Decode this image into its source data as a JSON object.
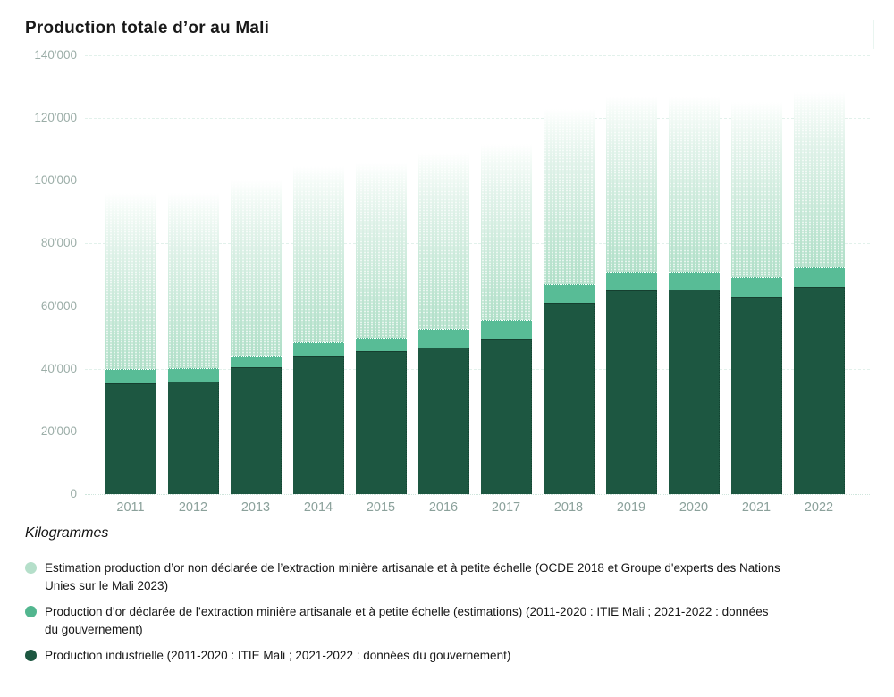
{
  "title": "Production totale d’or au Mali",
  "chart_data": {
    "type": "bar",
    "stacked": true,
    "title": "Production totale d’or au Mali",
    "ylabel": "Kilogrammes",
    "categories": [
      "2011",
      "2012",
      "2013",
      "2014",
      "2015",
      "2016",
      "2017",
      "2018",
      "2019",
      "2020",
      "2021",
      "2022"
    ],
    "series": [
      {
        "name": "Production industrielle (2011-2020 : ITIE Mali ; 2021-2022 : données du gouvernement)",
        "color": "#1d5741",
        "values": [
          35500,
          36000,
          40500,
          44200,
          45700,
          46700,
          49500,
          61000,
          65100,
          65300,
          63100,
          66100
        ]
      },
      {
        "name": "Production d’or déclarée de l’extraction minière artisanale et à petite échelle (estimations) (2011-2020 : ITIE Mali ; 2021-2022 : données du gouvernement)",
        "color": "#58bc96",
        "values": [
          4500,
          4100,
          3800,
          4400,
          4100,
          6100,
          6200,
          5900,
          5900,
          5700,
          6200,
          6200
        ]
      },
      {
        "name": "Estimation production d’or non déclarée de l’extraction minière artisanale et à petite échelle (OCDE 2018 et Groupe d'experts des Nations Unies sur le Mali 2023)",
        "color": "#b5dfca",
        "values": [
          56000,
          56000,
          56000,
          56000,
          56000,
          56000,
          56000,
          56000,
          56000,
          56000,
          56000,
          56000
        ]
      }
    ],
    "totals": [
      96000,
      96100,
      100300,
      104600,
      105800,
      108800,
      111700,
      122900,
      127000,
      127000,
      125300,
      128300
    ],
    "ylim": [
      0,
      140000
    ],
    "y_ticks": [
      {
        "value": 0,
        "label": "0"
      },
      {
        "value": 20000,
        "label": "20'000"
      },
      {
        "value": 40000,
        "label": "40'000"
      },
      {
        "value": 60000,
        "label": "60'000"
      },
      {
        "value": 80000,
        "label": "80'000"
      },
      {
        "value": 100000,
        "label": "100'000"
      },
      {
        "value": 120000,
        "label": "120'000"
      },
      {
        "value": 140000,
        "label": "140'000"
      }
    ],
    "grid": true,
    "legend_position": "bottom"
  },
  "legend": {
    "items": [
      {
        "label": "Estimation production d’or non déclarée de l’extraction minière artisanale et à petite échelle (OCDE 2018 et Groupe d'experts des Nations Unies sur le Mali 2023)",
        "color": "#b5dfca"
      },
      {
        "label": "Production d’or déclarée de l’extraction minière artisanale et à petite échelle (estimations) (2011-2020 : ITIE Mali ; 2021-2022 : données du gouvernement)",
        "color": "#52b68f"
      },
      {
        "label": "Production industrielle (2011-2020 : ITIE Mali ; 2021-2022 : données du gouvernement)",
        "color": "#1d5741"
      }
    ]
  }
}
